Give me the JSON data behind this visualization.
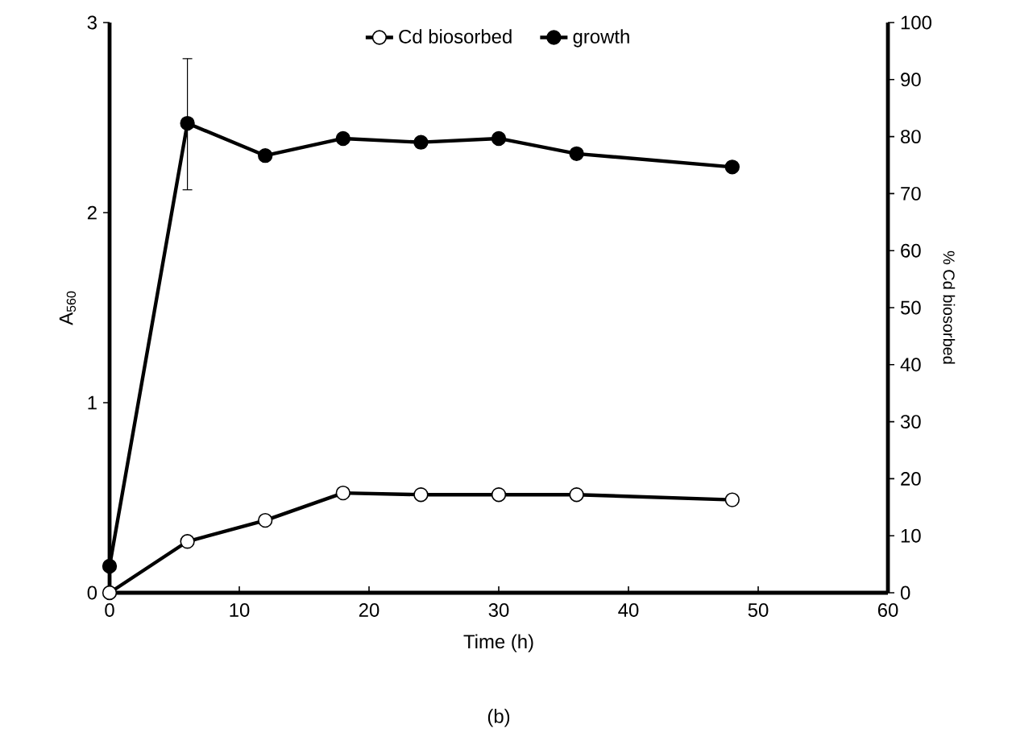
{
  "chart_data": {
    "type": "line",
    "xlabel": "Time (h)",
    "ylabel": "A$_{560}$",
    "y2label": "% Cd biosorbed",
    "annotations": [
      "(b)"
    ],
    "xlim": [
      0,
      60
    ],
    "xticks": [
      0,
      10,
      20,
      30,
      40,
      50,
      60
    ],
    "ylim": [
      0,
      3
    ],
    "yticks": [
      0,
      1,
      2,
      3
    ],
    "y2lim": [
      0,
      100
    ],
    "y2ticks": [
      0,
      10,
      20,
      30,
      40,
      50,
      60,
      70,
      80,
      90,
      100
    ],
    "legend": "top",
    "marker": "circle",
    "line_style": "solid",
    "grid": false,
    "series": [
      {
        "name": "Cd biosorbed",
        "color": "#ffffff",
        "axis": "y2",
        "x": [
          0,
          6,
          12,
          18,
          24,
          30,
          36,
          48
        ],
        "values": [
          0,
          9.0,
          12.7,
          17.5,
          17.2,
          17.2,
          17.2,
          16.3
        ]
      },
      {
        "name": "growth",
        "color": "#000000",
        "axis": "y",
        "x": [
          0,
          6,
          12,
          18,
          24,
          30,
          36,
          48
        ],
        "values": [
          0.14,
          2.47,
          2.3,
          2.39,
          2.37,
          2.39,
          2.31,
          2.24
        ],
        "errors": [
          null,
          [
            2.12,
            2.81
          ],
          null,
          null,
          null,
          null,
          null,
          null
        ]
      }
    ]
  }
}
